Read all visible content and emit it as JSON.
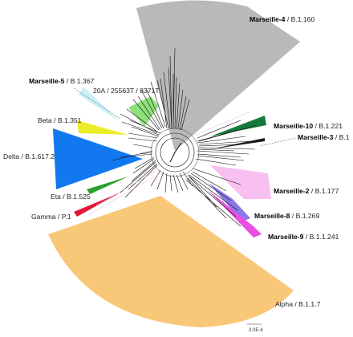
{
  "labels": {
    "marseille4": {
      "bold": "Marseille-4",
      "rest": " / B.1.160"
    },
    "marseille5": {
      "bold": "Marseille-5",
      "rest": " / B.1.367"
    },
    "clade20a": {
      "text": "20A / 25563T / 8371T"
    },
    "beta": {
      "text": "Beta / B.1.351"
    },
    "delta": {
      "text": "Delta / B.1.617.2"
    },
    "eta": {
      "text": "Eta / B.1.525"
    },
    "gamma": {
      "text": "Gamma / P.1"
    },
    "marseille10": {
      "bold": "Marseille-10",
      "rest": " / B.1.221"
    },
    "marseille3": {
      "bold": "Marseille-3",
      "rest": " / B.1"
    },
    "marseille2": {
      "bold": "Marseille-2",
      "rest": " / B.1.177"
    },
    "marseille8": {
      "bold": "Marseille-8",
      "rest": " / B.1.269"
    },
    "marseille9": {
      "bold": "Marseille-9",
      "rest": " / B.1.1.241"
    },
    "alpha": {
      "text": "Alpha / B.1.1.7"
    }
  },
  "scale_bar": {
    "label": "3.0E-4"
  },
  "clade_colors": {
    "marseille4": "#b9b9b9",
    "marseille5": "#c8f0f8",
    "clade20a": "#8ee07a",
    "beta": "#ecec2a",
    "delta": "#1278f0",
    "eta": "#2aa02a",
    "gamma": "#e01838",
    "marseille10": "#157a3c",
    "marseille3": "#1a1a1a",
    "marseille2": "#f8c0f0",
    "marseille8": "#8c78e8",
    "marseille9": "#e850e0",
    "alpha": "#f8c878"
  }
}
